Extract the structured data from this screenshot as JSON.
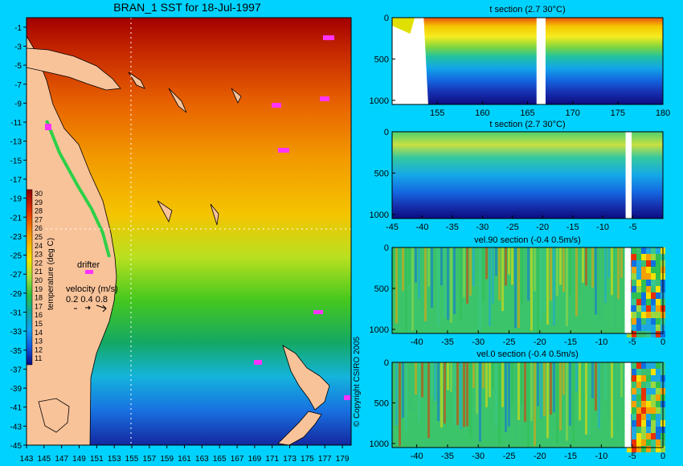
{
  "map": {
    "title": "BRAN_1 SST for 18-Jul-1997",
    "x_ticks": [
      "143",
      "145",
      "147",
      "149",
      "151",
      "153",
      "155",
      "157",
      "159",
      "161",
      "163",
      "165",
      "167",
      "169",
      "171",
      "173",
      "175",
      "177",
      "179"
    ],
    "y_ticks": [
      "-1",
      "-3",
      "-5",
      "-7",
      "-9",
      "-11",
      "-13",
      "-15",
      "-17",
      "-19",
      "-21",
      "-23",
      "-25",
      "-27",
      "-29",
      "-31",
      "-33",
      "-35",
      "-37",
      "-39",
      "-41",
      "-43",
      "-45"
    ],
    "colorbar_label": "temperature (deg C)",
    "colorbar_ticks": [
      "30",
      "29",
      "28",
      "27",
      "26",
      "25",
      "24",
      "23",
      "22",
      "21",
      "20",
      "19",
      "18",
      "17",
      "16",
      "15",
      "14",
      "13",
      "12",
      "11"
    ],
    "drifter_label": "drifter",
    "velocity_label": "velocity (m/s)",
    "velocity_scale": "0.2 0.4 0.8",
    "copyright": "© Copyright CSIRO 2005",
    "colors": {
      "land": "#f9c39a",
      "drifter": "#ff33ff",
      "guide": "#ffffff"
    }
  },
  "chart_data": [
    {
      "type": "heatmap",
      "title": "BRAN_1 SST for 18-Jul-1997",
      "xlabel": "",
      "ylabel": "",
      "xlim": [
        143,
        180
      ],
      "ylim": [
        -45,
        0
      ],
      "colorbar": {
        "label": "temperature (deg C)",
        "range": [
          11,
          30
        ]
      },
      "guide_lines": {
        "longitude": 155,
        "latitude": -22.5
      }
    },
    {
      "type": "heatmap",
      "title": "t section (2.7      30°C)",
      "x_ticks": [
        "155",
        "160",
        "165",
        "170",
        "175",
        "180"
      ],
      "y_ticks": [
        "0",
        "500",
        "1000"
      ],
      "xlim": [
        150,
        180
      ],
      "ylim": [
        1050,
        0
      ],
      "gaps": [
        [
          166,
          167
        ]
      ],
      "colorbar": {
        "range": [
          2.7,
          30
        ],
        "unit": "°C"
      }
    },
    {
      "type": "heatmap",
      "title": "t section (2.7      30°C)",
      "x_ticks": [
        "-45",
        "-40",
        "-35",
        "-30",
        "-25",
        "-20",
        "-15",
        "-10",
        "-5"
      ],
      "y_ticks": [
        "0",
        "500",
        "1000"
      ],
      "xlim": [
        -45,
        0
      ],
      "ylim": [
        1050,
        0
      ],
      "gaps": [
        [
          -6.2,
          -5.2
        ]
      ],
      "colorbar": {
        "range": [
          2.7,
          30
        ],
        "unit": "°C"
      }
    },
    {
      "type": "heatmap",
      "title": "vel.90 section (-0.4      0.5m/s)",
      "x_ticks": [
        "-40",
        "-35",
        "-30",
        "-25",
        "-20",
        "-15",
        "-10",
        "-5",
        "0"
      ],
      "y_ticks": [
        "0",
        "500",
        "1000"
      ],
      "xlim": [
        -44,
        0
      ],
      "ylim": [
        1050,
        0
      ],
      "gaps": [
        [
          -6.2,
          -5.2
        ]
      ],
      "colorbar": {
        "range": [
          -0.4,
          0.5
        ],
        "unit": "m/s"
      }
    },
    {
      "type": "heatmap",
      "title": "vel.0 section (-0.4      0.5m/s)",
      "x_ticks": [
        "-40",
        "-35",
        "-30",
        "-25",
        "-20",
        "-15",
        "-10",
        "-5",
        "0"
      ],
      "y_ticks": [
        "0",
        "500",
        "1000"
      ],
      "xlim": [
        -44,
        0
      ],
      "ylim": [
        1050,
        0
      ],
      "gaps": [
        [
          -6.2,
          -5.2
        ]
      ],
      "colorbar": {
        "range": [
          -0.4,
          0.5
        ],
        "unit": "m/s"
      }
    }
  ]
}
